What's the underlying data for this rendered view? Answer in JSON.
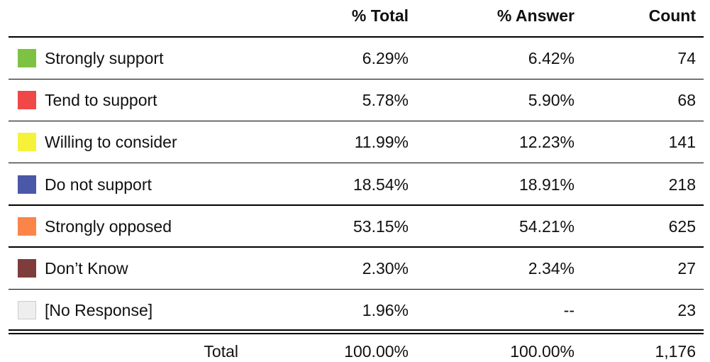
{
  "table": {
    "headers": [
      "% Total",
      "% Answer",
      "Count"
    ],
    "rows": [
      {
        "label": "Strongly support",
        "color": "#7dc242",
        "total": "6.29%",
        "answer": "6.42%",
        "count": "74"
      },
      {
        "label": "Tend to support",
        "color": "#f04848",
        "total": "5.78%",
        "answer": "5.90%",
        "count": "68"
      },
      {
        "label": "Willing to consider",
        "color": "#f6f23a",
        "total": "11.99%",
        "answer": "12.23%",
        "count": "141"
      },
      {
        "label": "Do not support",
        "color": "#4a58a8",
        "total": "18.54%",
        "answer": "18.91%",
        "count": "218"
      },
      {
        "label": "Strongly opposed",
        "color": "#fb8448",
        "total": "53.15%",
        "answer": "54.21%",
        "count": "625"
      },
      {
        "label": "Don’t Know",
        "color": "#7e3c3c",
        "total": "2.30%",
        "answer": "2.34%",
        "count": "27"
      },
      {
        "label": "[No Response]",
        "color": "#eeeeee",
        "total": "1.96%",
        "answer": "--",
        "count": "23"
      }
    ],
    "footer": {
      "label": "Total",
      "total": "100.00%",
      "answer": "100.00%",
      "count": "1,176"
    }
  }
}
